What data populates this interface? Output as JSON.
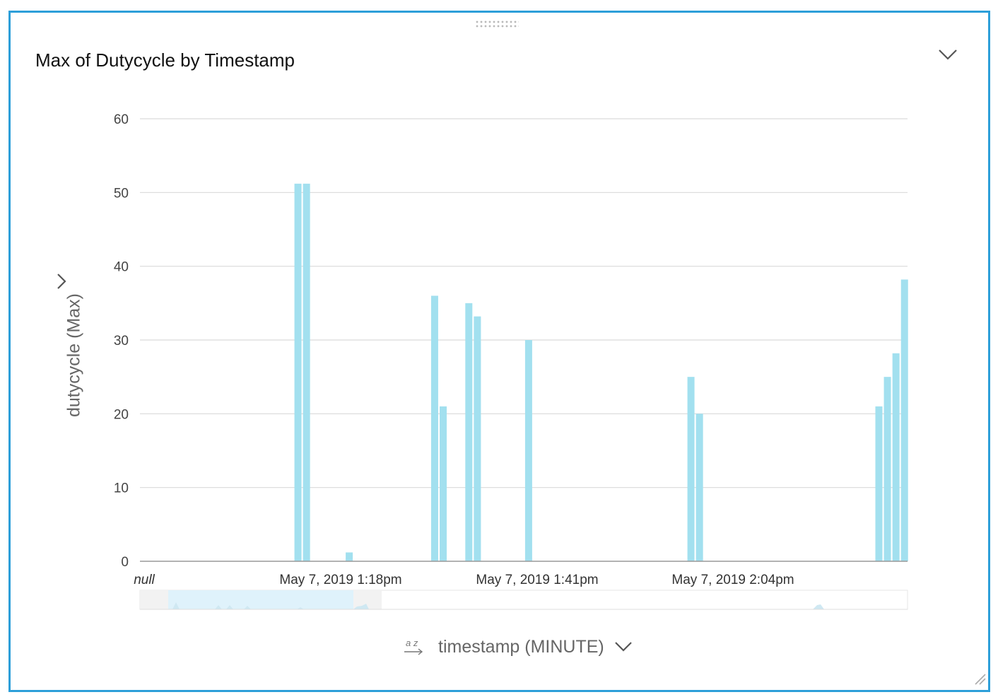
{
  "panel": {
    "title": "Max of Dutycycle by Timestamp",
    "accent_color": "#2d9fd9"
  },
  "icons": {
    "drag": "drag-handle-icon",
    "menu": "chevron-down-icon",
    "y_axis_menu": "chevron-right-icon",
    "sort": "sort-az-icon",
    "x_axis_menu": "chevron-down-icon",
    "resize": "resize-handle-icon"
  },
  "chart_data": {
    "type": "bar",
    "ylabel": "dutycycle (Max)",
    "xlabel": "timestamp (MINUTE)",
    "ylim": [
      0,
      60
    ],
    "y_ticks": [
      0,
      10,
      20,
      30,
      40,
      50,
      60
    ],
    "x_tick_labels": [
      "null",
      "May 7, 2019 1:18pm",
      "May 7, 2019 1:41pm",
      "May 7, 2019 2:04pm"
    ],
    "grid": true,
    "bar_color": "#a2e0ef",
    "x_origin": "May 7, 2019 1:00pm",
    "x_unit": "minutes",
    "bars": [
      {
        "t": 13.0,
        "value": 51.2
      },
      {
        "t": 14.0,
        "value": 51.2
      },
      {
        "t": 19.0,
        "value": 1.2
      },
      {
        "t": 29.0,
        "value": 36.0
      },
      {
        "t": 30.0,
        "value": 21.0
      },
      {
        "t": 33.0,
        "value": 35.0
      },
      {
        "t": 34.0,
        "value": 33.2
      },
      {
        "t": 40.0,
        "value": 30.0
      },
      {
        "t": 59.0,
        "value": 25.0
      },
      {
        "t": 60.0,
        "value": 20.0
      },
      {
        "t": 81.0,
        "value": 21.0
      },
      {
        "t": 82.0,
        "value": 25.0
      },
      {
        "t": 83.0,
        "value": 28.2
      },
      {
        "t": 84.0,
        "value": 38.2
      }
    ]
  }
}
